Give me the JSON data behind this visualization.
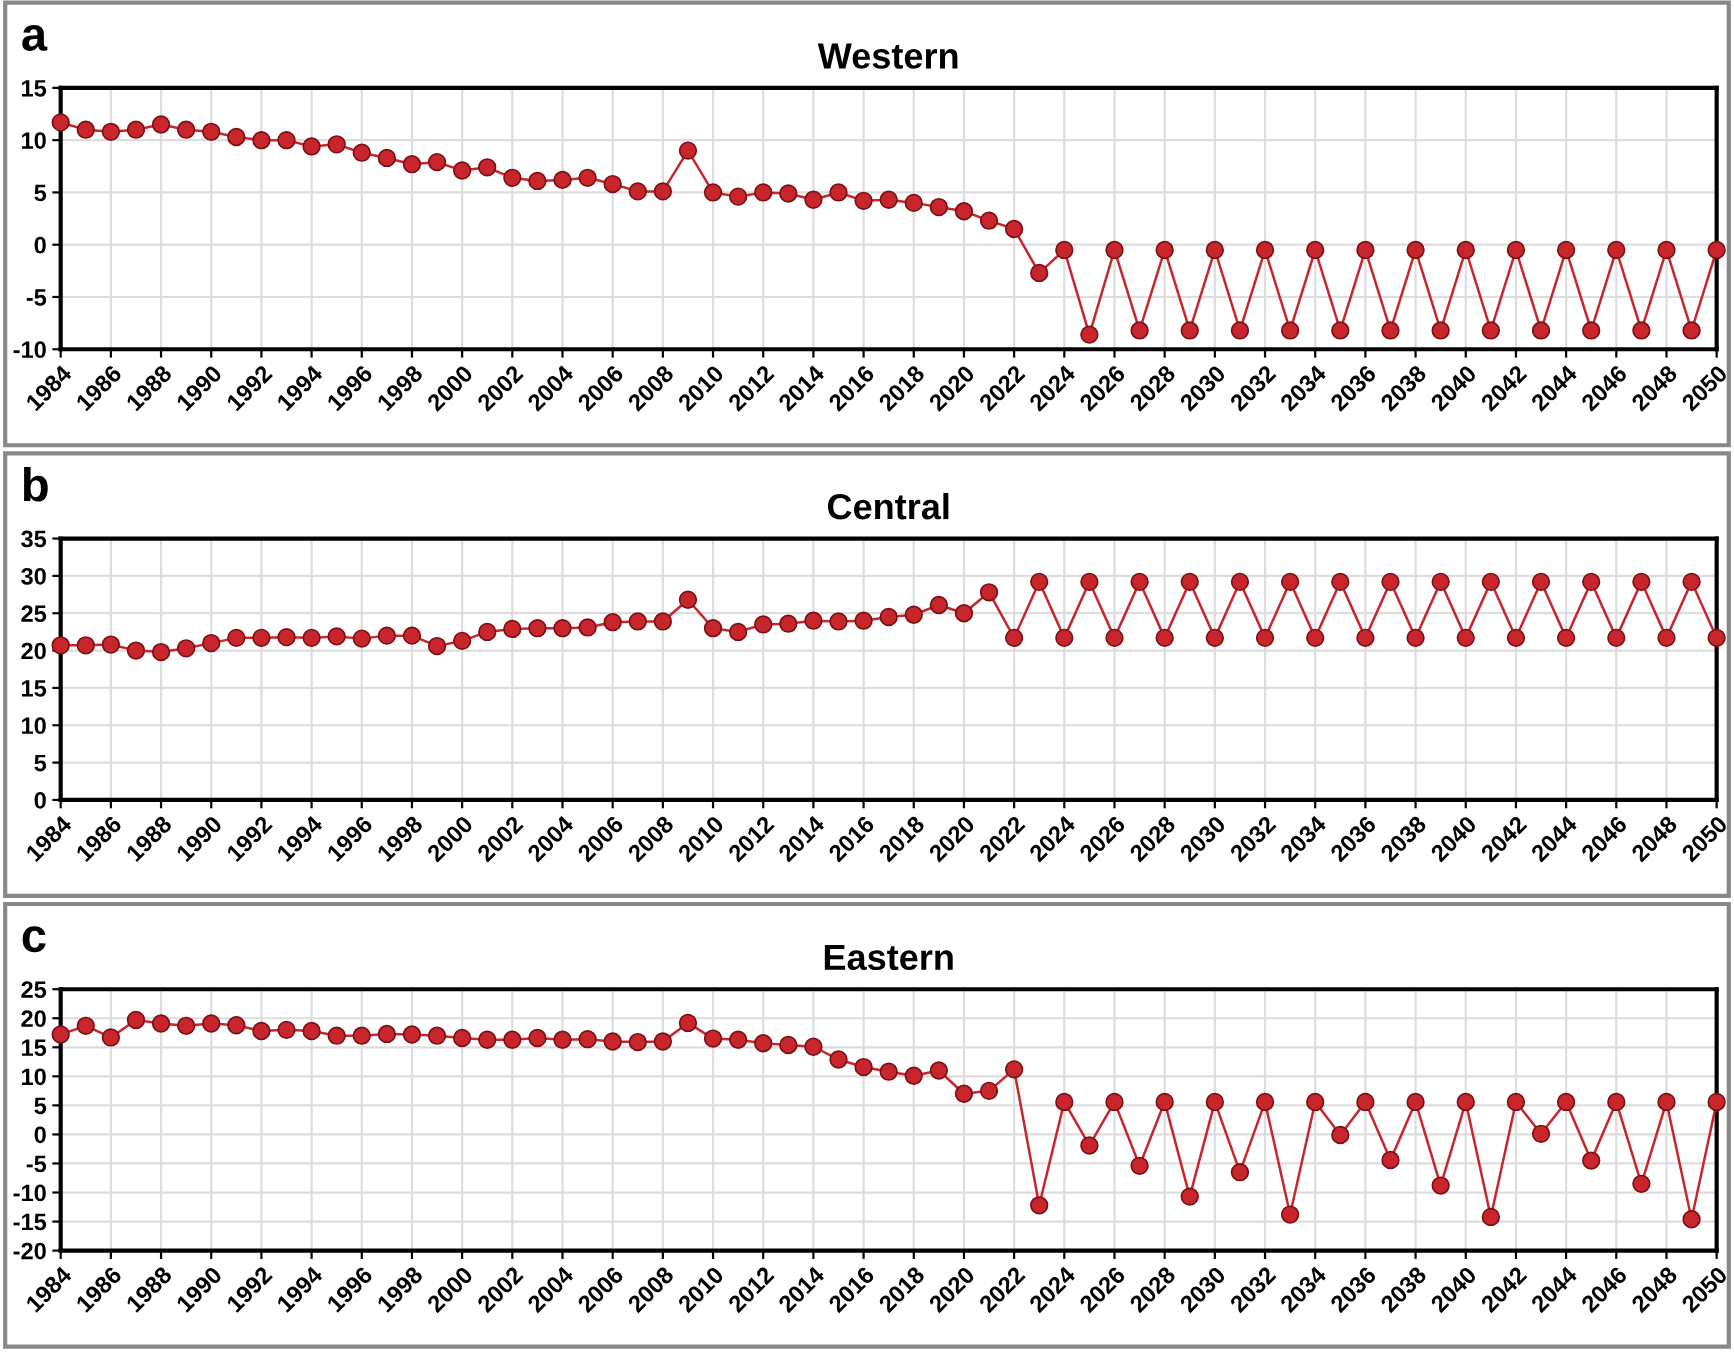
{
  "chart_data": [
    {
      "type": "line",
      "title": "Western",
      "annotations": [
        "a"
      ],
      "marker": "circle",
      "line_style": "solid",
      "grid": true,
      "xlim": [
        1984,
        2050
      ],
      "xticks": [
        1984,
        1986,
        1988,
        1990,
        1992,
        1994,
        1996,
        1998,
        2000,
        2002,
        2004,
        2006,
        2008,
        2010,
        2012,
        2014,
        2016,
        2018,
        2020,
        2022,
        2024,
        2026,
        2028,
        2030,
        2032,
        2034,
        2036,
        2038,
        2040,
        2042,
        2044,
        2046,
        2048,
        2050
      ],
      "ylim": [
        -10,
        15
      ],
      "yticks": [
        -10,
        -5,
        0,
        5,
        10,
        15
      ],
      "x": [
        1984,
        1985,
        1986,
        1987,
        1988,
        1989,
        1990,
        1991,
        1992,
        1993,
        1994,
        1995,
        1996,
        1997,
        1998,
        1999,
        2000,
        2001,
        2002,
        2003,
        2004,
        2005,
        2006,
        2007,
        2008,
        2009,
        2010,
        2011,
        2012,
        2013,
        2014,
        2015,
        2016,
        2017,
        2018,
        2019,
        2020,
        2021,
        2022,
        2023,
        2024,
        2025,
        2026,
        2027,
        2028,
        2029,
        2030,
        2031,
        2032,
        2033,
        2034,
        2035,
        2036,
        2037,
        2038,
        2039,
        2040,
        2041,
        2042,
        2043,
        2044,
        2045,
        2046,
        2047,
        2048,
        2049,
        2050
      ],
      "series": [
        {
          "color": "#c8262c",
          "values": [
            11.7,
            11.0,
            10.8,
            11.0,
            11.5,
            11.0,
            10.8,
            10.3,
            10.0,
            10.0,
            9.4,
            9.6,
            8.8,
            8.3,
            7.7,
            7.9,
            7.1,
            7.4,
            6.4,
            6.1,
            6.2,
            6.4,
            5.8,
            5.1,
            5.1,
            9.0,
            5.0,
            4.6,
            5.0,
            4.9,
            4.3,
            5.0,
            4.2,
            4.3,
            4.0,
            3.6,
            3.2,
            2.3,
            1.5,
            -2.7,
            -0.5,
            -8.6,
            -0.5,
            -8.2,
            -0.5,
            -8.2,
            -0.5,
            -8.2,
            -0.5,
            -8.2,
            -0.5,
            -8.2,
            -0.5,
            -8.2,
            -0.5,
            -8.2,
            -0.5,
            -8.2,
            -0.5,
            -8.2,
            -0.5,
            -8.2,
            -0.5,
            -8.2,
            -0.5,
            -8.2,
            -0.5
          ]
        }
      ]
    },
    {
      "type": "line",
      "title": "Central",
      "annotations": [
        "b"
      ],
      "marker": "circle",
      "line_style": "solid",
      "grid": true,
      "xlim": [
        1984,
        2050
      ],
      "xticks": [
        1984,
        1986,
        1988,
        1990,
        1992,
        1994,
        1996,
        1998,
        2000,
        2002,
        2004,
        2006,
        2008,
        2010,
        2012,
        2014,
        2016,
        2018,
        2020,
        2022,
        2024,
        2026,
        2028,
        2030,
        2032,
        2034,
        2036,
        2038,
        2040,
        2042,
        2044,
        2046,
        2048,
        2050
      ],
      "ylim": [
        0,
        35
      ],
      "yticks": [
        0,
        5,
        10,
        15,
        20,
        25,
        30,
        35
      ],
      "x": [
        1984,
        1985,
        1986,
        1987,
        1988,
        1989,
        1990,
        1991,
        1992,
        1993,
        1994,
        1995,
        1996,
        1997,
        1998,
        1999,
        2000,
        2001,
        2002,
        2003,
        2004,
        2005,
        2006,
        2007,
        2008,
        2009,
        2010,
        2011,
        2012,
        2013,
        2014,
        2015,
        2016,
        2017,
        2018,
        2019,
        2020,
        2021,
        2022,
        2023,
        2024,
        2025,
        2026,
        2027,
        2028,
        2029,
        2030,
        2031,
        2032,
        2033,
        2034,
        2035,
        2036,
        2037,
        2038,
        2039,
        2040,
        2041,
        2042,
        2043,
        2044,
        2045,
        2046,
        2047,
        2048,
        2049,
        2050
      ],
      "series": [
        {
          "color": "#c8262c",
          "values": [
            20.7,
            20.7,
            20.8,
            20.0,
            19.8,
            20.3,
            21.0,
            21.7,
            21.7,
            21.8,
            21.7,
            21.9,
            21.6,
            22.0,
            22.0,
            20.6,
            21.3,
            22.5,
            22.9,
            23.0,
            23.0,
            23.1,
            23.8,
            23.9,
            23.9,
            26.8,
            23.0,
            22.5,
            23.5,
            23.6,
            24.0,
            23.9,
            24.0,
            24.5,
            24.8,
            26.1,
            25.0,
            27.8,
            21.7,
            29.2,
            21.7,
            29.2,
            21.7,
            29.2,
            21.7,
            29.2,
            21.7,
            29.2,
            21.7,
            29.2,
            21.7,
            29.2,
            21.7,
            29.2,
            21.7,
            29.2,
            21.7,
            29.2,
            21.7,
            29.2,
            21.7,
            29.2,
            21.7,
            29.2,
            21.7,
            29.2,
            21.7
          ]
        }
      ]
    },
    {
      "type": "line",
      "title": "Eastern",
      "annotations": [
        "c"
      ],
      "marker": "circle",
      "line_style": "solid",
      "grid": true,
      "xlim": [
        1984,
        2050
      ],
      "xticks": [
        1984,
        1986,
        1988,
        1990,
        1992,
        1994,
        1996,
        1998,
        2000,
        2002,
        2004,
        2006,
        2008,
        2010,
        2012,
        2014,
        2016,
        2018,
        2020,
        2022,
        2024,
        2026,
        2028,
        2030,
        2032,
        2034,
        2036,
        2038,
        2040,
        2042,
        2044,
        2046,
        2048,
        2050
      ],
      "ylim": [
        -20,
        25
      ],
      "yticks": [
        -20,
        -15,
        -10,
        -5,
        0,
        5,
        10,
        15,
        20,
        25
      ],
      "x": [
        1984,
        1985,
        1986,
        1987,
        1988,
        1989,
        1990,
        1991,
        1992,
        1993,
        1994,
        1995,
        1996,
        1997,
        1998,
        1999,
        2000,
        2001,
        2002,
        2003,
        2004,
        2005,
        2006,
        2007,
        2008,
        2009,
        2010,
        2011,
        2012,
        2013,
        2014,
        2015,
        2016,
        2017,
        2018,
        2019,
        2020,
        2021,
        2022,
        2023,
        2024,
        2025,
        2026,
        2027,
        2028,
        2029,
        2030,
        2031,
        2032,
        2033,
        2034,
        2035,
        2036,
        2037,
        2038,
        2039,
        2040,
        2041,
        2042,
        2043,
        2044,
        2045,
        2046,
        2047,
        2048,
        2049,
        2050
      ],
      "series": [
        {
          "color": "#c8262c",
          "values": [
            17.2,
            18.7,
            16.7,
            19.7,
            19.1,
            18.7,
            19.1,
            18.8,
            17.8,
            18.0,
            17.8,
            17.0,
            17.0,
            17.3,
            17.2,
            17.0,
            16.6,
            16.3,
            16.3,
            16.6,
            16.3,
            16.4,
            16.0,
            15.9,
            16.0,
            19.2,
            16.5,
            16.3,
            15.7,
            15.4,
            15.1,
            12.9,
            11.6,
            10.8,
            10.1,
            11.0,
            7.0,
            7.5,
            11.2,
            -12.2,
            5.6,
            -1.9,
            5.6,
            -5.4,
            5.6,
            -10.7,
            5.6,
            -6.5,
            5.6,
            -13.8,
            5.6,
            -0.1,
            5.6,
            -4.4,
            5.6,
            -8.8,
            5.6,
            -14.2,
            5.6,
            0.1,
            5.6,
            -4.5,
            5.6,
            -8.5,
            5.6,
            -14.6,
            5.6
          ]
        }
      ]
    }
  ]
}
